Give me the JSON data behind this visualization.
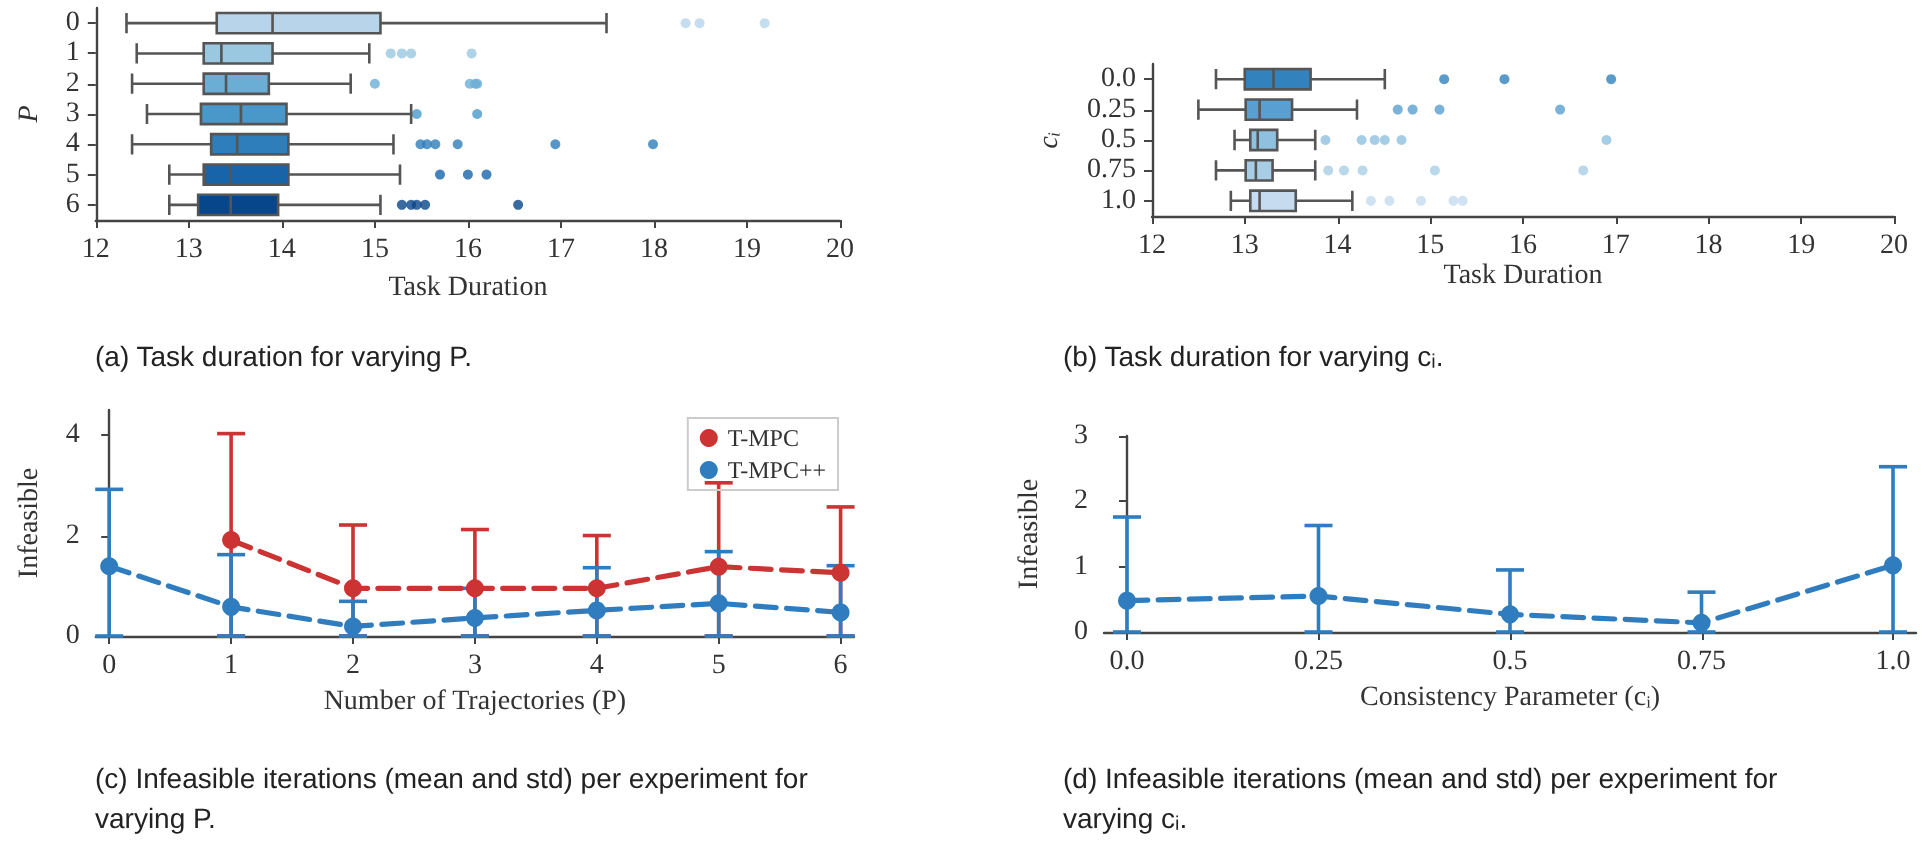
{
  "chart_data": [
    {
      "type": "box",
      "orientation": "horizontal",
      "xlabel": "Task Duration",
      "ylabel": "P",
      "annotations": [
        "(a) Task duration for varying P."
      ],
      "categories": [
        "0",
        "1",
        "2",
        "3",
        "4",
        "5",
        "6"
      ],
      "colors": [
        "#b7d4ea",
        "#9ac8e0",
        "#6aaed6",
        "#4a98c9",
        "#2e7ebc",
        "#1764ab",
        "#08468b"
      ],
      "xlim": [
        12,
        20
      ],
      "xticks": [
        12,
        13,
        14,
        15,
        16,
        17,
        18,
        19,
        20
      ],
      "boxes": [
        {
          "low": 12.33,
          "q1": 13.3,
          "median": 13.9,
          "q3": 15.06,
          "high": 17.49,
          "outliers": [
            18.34,
            18.49,
            19.19
          ]
        },
        {
          "low": 12.44,
          "q1": 13.16,
          "median": 13.35,
          "q3": 13.9,
          "high": 14.94,
          "outliers": [
            15.17,
            15.29,
            15.39,
            16.04
          ]
        },
        {
          "low": 12.39,
          "q1": 13.16,
          "median": 13.4,
          "q3": 13.86,
          "high": 14.74,
          "outliers": [
            15.0,
            16.02,
            16.08,
            16.1
          ]
        },
        {
          "low": 12.55,
          "q1": 13.13,
          "median": 13.56,
          "q3": 14.05,
          "high": 15.39,
          "outliers": [
            15.45,
            16.1
          ]
        },
        {
          "low": 12.39,
          "q1": 13.24,
          "median": 13.52,
          "q3": 14.07,
          "high": 15.2,
          "outliers": [
            15.49,
            15.56,
            15.65,
            15.89,
            16.94,
            17.99
          ]
        },
        {
          "low": 12.79,
          "q1": 13.16,
          "median": 13.45,
          "q3": 14.07,
          "high": 15.27,
          "outliers": [
            15.7,
            16.0,
            16.2
          ]
        },
        {
          "low": 12.79,
          "q1": 13.1,
          "median": 13.45,
          "q3": 13.96,
          "high": 15.06,
          "outliers": [
            15.29,
            15.39,
            15.45,
            15.54,
            16.54
          ]
        }
      ]
    },
    {
      "type": "box",
      "orientation": "horizontal",
      "xlabel": "Task Duration",
      "ylabel": "cᵢ",
      "annotations": [
        "(b) Task duration for varying cᵢ."
      ],
      "categories": [
        "0.0",
        "0.25",
        "0.5",
        "0.75",
        "1.0"
      ],
      "colors": [
        "#3182bd",
        "#5a9fd1",
        "#8ec0e0",
        "#a8cee5",
        "#c6dbef"
      ],
      "xlim": [
        12,
        20
      ],
      "xticks": [
        12,
        13,
        14,
        15,
        16,
        17,
        18,
        19,
        20
      ],
      "boxes": [
        {
          "low": 12.69,
          "q1": 13.0,
          "median": 13.31,
          "q3": 13.71,
          "high": 14.51,
          "outliers": [
            15.15,
            15.8,
            16.95
          ]
        },
        {
          "low": 12.5,
          "q1": 13.01,
          "median": 13.16,
          "q3": 13.51,
          "high": 14.21,
          "outliers": [
            14.65,
            14.81,
            15.1,
            16.4
          ]
        },
        {
          "low": 12.89,
          "q1": 13.06,
          "median": 13.14,
          "q3": 13.35,
          "high": 13.76,
          "outliers": [
            13.87,
            14.26,
            14.4,
            14.51,
            14.69,
            16.9
          ]
        },
        {
          "low": 12.69,
          "q1": 13.01,
          "median": 13.12,
          "q3": 13.3,
          "high": 13.76,
          "outliers": [
            13.9,
            14.07,
            14.27,
            15.05,
            16.65
          ]
        },
        {
          "low": 12.85,
          "q1": 13.06,
          "median": 13.16,
          "q3": 13.55,
          "high": 14.16,
          "outliers": [
            14.36,
            14.56,
            14.9,
            15.25,
            15.35
          ]
        }
      ]
    },
    {
      "type": "line",
      "xlabel": "Number of Trajectories (P)",
      "ylabel": "Infeasible",
      "annotations": [
        "(c) Infeasible iterations (mean and std) per experiment for varying P."
      ],
      "xlim": [
        -0.11,
        6.11
      ],
      "xticks": [
        0,
        1,
        2,
        3,
        4,
        5,
        6
      ],
      "ylim": [
        0,
        4.5
      ],
      "yticks": [
        0,
        2,
        4
      ],
      "legend": "top right",
      "marker": "circle",
      "line_style": "dashed",
      "series": [
        {
          "name": "T-MPC",
          "color": "#cc3333",
          "x": [
            1,
            2,
            3,
            4,
            5,
            6
          ],
          "values": [
            1.91,
            0.95,
            0.95,
            0.95,
            1.38,
            1.26
          ],
          "errors": [
            [
              0,
              4.03
            ],
            [
              0,
              2.21
            ],
            [
              0,
              2.12
            ],
            [
              0,
              2.0
            ],
            [
              0,
              3.05
            ],
            [
              0,
              2.57
            ]
          ]
        },
        {
          "name": "T-MPC++",
          "color": "#2f7dbf",
          "x": [
            0,
            1,
            2,
            3,
            4,
            5,
            6
          ],
          "values": [
            1.39,
            0.58,
            0.19,
            0.36,
            0.51,
            0.65,
            0.47
          ],
          "errors": [
            [
              0,
              2.92
            ],
            [
              0,
              1.62
            ],
            [
              0,
              0.69
            ],
            [
              0,
              0.95
            ],
            [
              0,
              1.36
            ],
            [
              0,
              1.68
            ],
            [
              0,
              1.4
            ]
          ]
        }
      ]
    },
    {
      "type": "line",
      "xlabel": "Consistency Parameter (cᵢ)",
      "ylabel": "Infeasible",
      "annotations": [
        "(d) Infeasible iterations (mean and std) per experiment for varying cᵢ."
      ],
      "xlim": [
        -0.03,
        1.03
      ],
      "xticks": [
        {
          "value": 0,
          "label": "0.0"
        },
        0.25,
        0.5,
        0.75,
        {
          "value": 1,
          "label": "1.0"
        }
      ],
      "ylim": [
        0,
        3
      ],
      "yticks": [
        0,
        1,
        2,
        3
      ],
      "marker": "circle",
      "line_style": "dashed",
      "series": [
        {
          "color": "#2f7dbf",
          "x": [
            0,
            0.25,
            0.5,
            0.75,
            1
          ],
          "values": [
            0.48,
            0.55,
            0.27,
            0.14,
            1.02
          ],
          "errors": [
            [
              0,
              1.76
            ],
            [
              0,
              1.63
            ],
            [
              0,
              0.95
            ],
            [
              0,
              0.61
            ],
            [
              0,
              2.53
            ]
          ]
        }
      ]
    }
  ]
}
